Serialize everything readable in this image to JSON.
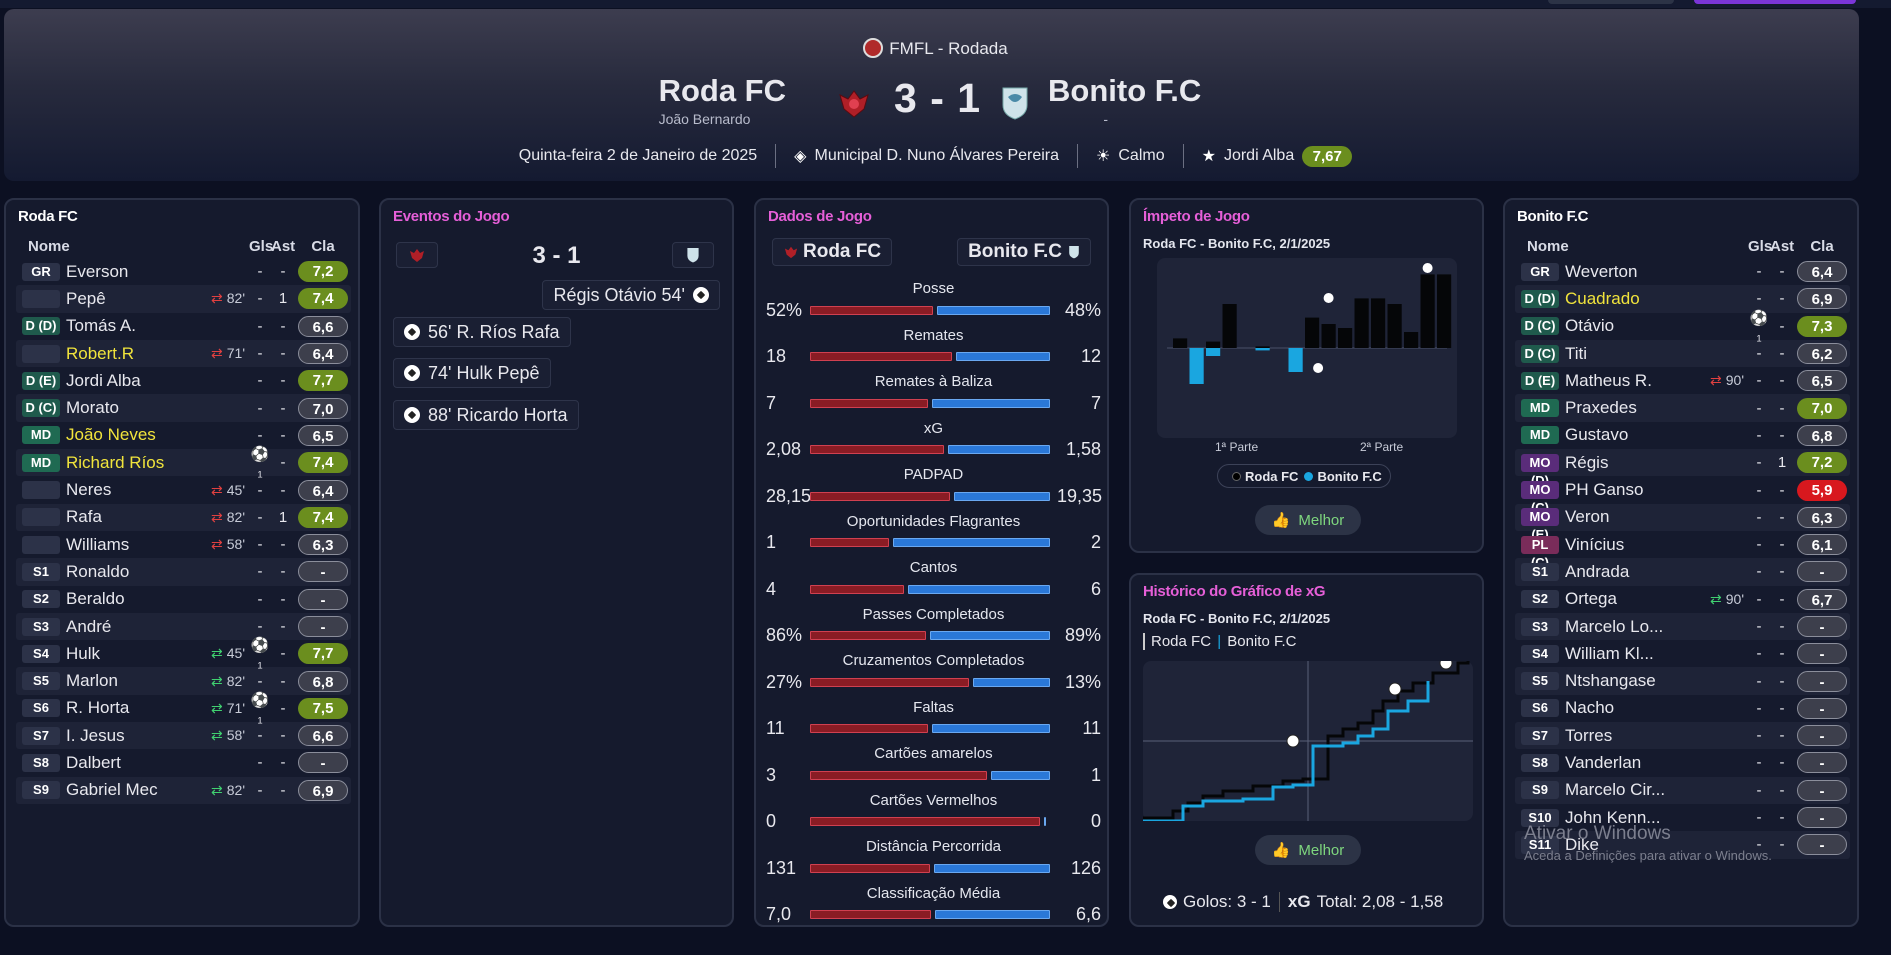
{
  "header": {
    "competition": "FMFL - Rodada",
    "home_team": "Roda FC",
    "home_manager": "João Bernardo",
    "away_team": "Bonito F.C",
    "away_manager": "-",
    "score": "3 - 1",
    "date": "Quinta-feira 2 de Janeiro de 2025",
    "stadium": "Municipal D. Nuno Álvares Pereira",
    "weather": "Calmo",
    "motm_name": "Jordi Alba",
    "motm_rating": "7,67"
  },
  "home_lineup": {
    "title": "Roda FC",
    "cols": {
      "name": "Nome",
      "gls": "Gls",
      "ast": "Ast",
      "cla": "Cla"
    },
    "players": [
      {
        "pos": "GR",
        "name": "Everson",
        "sub": "",
        "gls": "-",
        "ast": "-",
        "cla": "7,2",
        "c": "yel"
      },
      {
        "pos": "",
        "name": "Pepê",
        "sub": "82'",
        "dir": "out",
        "gls": "-",
        "ast": "1",
        "cla": "7,4",
        "c": "yel"
      },
      {
        "pos": "D (D)",
        "name": "Tomás A.",
        "sub": "",
        "gls": "-",
        "ast": "-",
        "cla": "6,6",
        "c": "avg"
      },
      {
        "pos": "",
        "name": "Robert.R",
        "sub": "71'",
        "dir": "out",
        "gls": "-",
        "ast": "-",
        "cla": "6,4",
        "c": "avg",
        "hl": true
      },
      {
        "pos": "D (E)",
        "name": "Jordi Alba",
        "sub": "",
        "gls": "-",
        "ast": "-",
        "cla": "7,7",
        "c": "yel"
      },
      {
        "pos": "D (C)",
        "name": "Morato",
        "sub": "",
        "gls": "-",
        "ast": "-",
        "cla": "7,0",
        "c": "avg"
      },
      {
        "pos": "MD",
        "name": "João Neves",
        "sub": "",
        "gls": "-",
        "ast": "-",
        "cla": "6,5",
        "c": "avg",
        "hl": true
      },
      {
        "pos": "MD",
        "name": "Richard Ríos",
        "sub": "",
        "gls": "⚽₁",
        "ast": "-",
        "cla": "7,4",
        "c": "yel",
        "hl": true
      },
      {
        "pos": "",
        "name": "Neres",
        "sub": "45'",
        "dir": "out",
        "gls": "-",
        "ast": "-",
        "cla": "6,4",
        "c": "avg"
      },
      {
        "pos": "",
        "name": "Rafa",
        "sub": "82'",
        "dir": "out",
        "gls": "-",
        "ast": "1",
        "cla": "7,4",
        "c": "yel"
      },
      {
        "pos": "",
        "name": "Williams",
        "sub": "58'",
        "dir": "out",
        "gls": "-",
        "ast": "-",
        "cla": "6,3",
        "c": "avg"
      },
      {
        "pos": "S1",
        "name": "Ronaldo",
        "sub": "",
        "gls": "-",
        "ast": "-",
        "cla": "-",
        "c": "dash"
      },
      {
        "pos": "S2",
        "name": "Beraldo",
        "sub": "",
        "gls": "-",
        "ast": "-",
        "cla": "-",
        "c": "dash"
      },
      {
        "pos": "S3",
        "name": "André",
        "sub": "",
        "gls": "-",
        "ast": "-",
        "cla": "-",
        "c": "dash"
      },
      {
        "pos": "S4",
        "name": "Hulk",
        "sub": "45'",
        "dir": "in",
        "gls": "⚽₁",
        "ast": "-",
        "cla": "7,7",
        "c": "yel"
      },
      {
        "pos": "S5",
        "name": "Marlon",
        "sub": "82'",
        "dir": "in",
        "gls": "-",
        "ast": "-",
        "cla": "6,8",
        "c": "avg"
      },
      {
        "pos": "S6",
        "name": "R. Horta",
        "sub": "71'",
        "dir": "in",
        "gls": "⚽₁",
        "ast": "-",
        "cla": "7,5",
        "c": "yel"
      },
      {
        "pos": "S7",
        "name": "I. Jesus",
        "sub": "58'",
        "dir": "in",
        "gls": "-",
        "ast": "-",
        "cla": "6,6",
        "c": "avg"
      },
      {
        "pos": "S8",
        "name": "Dalbert",
        "sub": "",
        "gls": "-",
        "ast": "-",
        "cla": "-",
        "c": "dash"
      },
      {
        "pos": "S9",
        "name": "Gabriel Mec",
        "sub": "82'",
        "dir": "in",
        "gls": "-",
        "ast": "-",
        "cla": "6,9",
        "c": "avg"
      }
    ]
  },
  "events": {
    "title": "Eventos do Jogo",
    "score": "3 - 1",
    "away_event": "Régis Otávio 54'",
    "home_events": [
      "56' R. Ríos Rafa",
      "74' Hulk Pepê",
      "88' Ricardo Horta"
    ]
  },
  "stats": {
    "title": "Dados de Jogo",
    "home": "Roda FC",
    "away": "Bonito F.C",
    "rows": [
      {
        "label": "Posse",
        "h": "52%",
        "a": "48%",
        "hv": 52,
        "av": 48
      },
      {
        "label": "Remates",
        "h": "18",
        "a": "12",
        "hv": 18,
        "av": 12
      },
      {
        "label": "Remates à Baliza",
        "h": "7",
        "a": "7",
        "hv": 7,
        "av": 7
      },
      {
        "label": "xG",
        "h": "2,08",
        "a": "1,58",
        "hv": 2.08,
        "av": 1.58
      },
      {
        "label": "PADPAD",
        "h": "28,15",
        "a": "19,35",
        "hv": 28.15,
        "av": 19.35
      },
      {
        "label": "Oportunidades Flagrantes",
        "h": "1",
        "a": "2",
        "hv": 1,
        "av": 2
      },
      {
        "label": "Cantos",
        "h": "4",
        "a": "6",
        "hv": 4,
        "av": 6
      },
      {
        "label": "Passes Completados",
        "h": "86%",
        "a": "89%",
        "hv": 86,
        "av": 89
      },
      {
        "label": "Cruzamentos Completados",
        "h": "27%",
        "a": "13%",
        "hv": 27,
        "av": 13
      },
      {
        "label": "Faltas",
        "h": "11",
        "a": "11",
        "hv": 11,
        "av": 11
      },
      {
        "label": "Cartões amarelos",
        "h": "3",
        "a": "1",
        "hv": 3,
        "av": 1
      },
      {
        "label": "Cartões Vermelhos",
        "h": "0",
        "a": "0",
        "hv": 0,
        "av": 0
      },
      {
        "label": "Distância Percorrida",
        "h": "131",
        "a": "126",
        "hv": 131,
        "av": 126
      },
      {
        "label": "Classificação Média",
        "h": "7,0",
        "a": "6,6",
        "hv": 7.0,
        "av": 6.6
      }
    ]
  },
  "momentum": {
    "title": "Ímpeto de Jogo",
    "subtitle": "Roda FC - Bonito F.C, 2/1/2025",
    "half1": "1ª Parte",
    "half2": "2ª Parte",
    "legend_home": "Roda FC",
    "legend_away": "Bonito F.C",
    "button": "Melhor",
    "home_bars": [
      0.12,
      0,
      0.08,
      0.55,
      0,
      0.02,
      0,
      0,
      0.38,
      0.3,
      0.25,
      0.62,
      0.62,
      0.55,
      0.2,
      0.92,
      0.92
    ],
    "away_bars": [
      0,
      0.45,
      0.1,
      0,
      0,
      0.03,
      0,
      0.3,
      0,
      0,
      0,
      0,
      0,
      0,
      0,
      0,
      0
    ]
  },
  "xg_chart": {
    "title": "Histórico do Gráfico de xG",
    "subtitle": "Roda FC - Bonito F.C, 2/1/2025",
    "legend_home": "Roda FC",
    "legend_away": "Bonito F.C",
    "button": "Melhor",
    "goals_label": "Golos: 3 - 1",
    "xg_label": "xG",
    "xg_total": "Total: 2,08 - 1,58"
  },
  "away_lineup": {
    "title": "Bonito F.C",
    "cols": {
      "name": "Nome",
      "gls": "Gls",
      "ast": "Ast",
      "cla": "Cla"
    },
    "players": [
      {
        "pos": "GR",
        "name": "Weverton",
        "sub": "",
        "gls": "-",
        "ast": "-",
        "cla": "6,4",
        "c": "avg"
      },
      {
        "pos": "D (D)",
        "name": "Cuadrado",
        "sub": "",
        "gls": "-",
        "ast": "-",
        "cla": "6,9",
        "c": "avg",
        "hl": true
      },
      {
        "pos": "D (C)",
        "name": "Otávio",
        "sub": "",
        "gls": "⚽₁",
        "ast": "-",
        "cla": "7,3",
        "c": "yel"
      },
      {
        "pos": "D (C)",
        "name": "Titi",
        "sub": "",
        "gls": "-",
        "ast": "-",
        "cla": "6,2",
        "c": "avg"
      },
      {
        "pos": "D (E)",
        "name": "Matheus R.",
        "sub": "90'",
        "dir": "out",
        "gls": "-",
        "ast": "-",
        "cla": "6,5",
        "c": "avg"
      },
      {
        "pos": "MD",
        "name": "Praxedes",
        "sub": "",
        "gls": "-",
        "ast": "-",
        "cla": "7,0",
        "c": "yel"
      },
      {
        "pos": "MD",
        "name": "Gustavo",
        "sub": "",
        "gls": "-",
        "ast": "-",
        "cla": "6,8",
        "c": "avg"
      },
      {
        "pos": "MO (D)",
        "name": "Régis",
        "sub": "",
        "gls": "-",
        "ast": "1",
        "cla": "7,2",
        "c": "yel"
      },
      {
        "pos": "MO (C)",
        "name": "PH Ganso",
        "sub": "",
        "gls": "-",
        "ast": "-",
        "cla": "5,9",
        "c": "red"
      },
      {
        "pos": "MO (E)",
        "name": "Veron",
        "sub": "",
        "gls": "-",
        "ast": "-",
        "cla": "6,3",
        "c": "avg"
      },
      {
        "pos": "PL (C)",
        "name": "Vinícius",
        "sub": "",
        "gls": "-",
        "ast": "-",
        "cla": "6,1",
        "c": "avg"
      },
      {
        "pos": "S1",
        "name": "Andrada",
        "sub": "",
        "gls": "-",
        "ast": "-",
        "cla": "-",
        "c": "dash"
      },
      {
        "pos": "S2",
        "name": "Ortega",
        "sub": "90'",
        "dir": "in",
        "gls": "-",
        "ast": "-",
        "cla": "6,7",
        "c": "avg"
      },
      {
        "pos": "S3",
        "name": "Marcelo Lo...",
        "sub": "",
        "gls": "-",
        "ast": "-",
        "cla": "-",
        "c": "dash"
      },
      {
        "pos": "S4",
        "name": "William Kl...",
        "sub": "",
        "gls": "-",
        "ast": "-",
        "cla": "-",
        "c": "dash"
      },
      {
        "pos": "S5",
        "name": "Ntshangase",
        "sub": "",
        "gls": "-",
        "ast": "-",
        "cla": "-",
        "c": "dash"
      },
      {
        "pos": "S6",
        "name": "Nacho",
        "sub": "",
        "gls": "-",
        "ast": "-",
        "cla": "-",
        "c": "dash"
      },
      {
        "pos": "S7",
        "name": "Torres",
        "sub": "",
        "gls": "-",
        "ast": "-",
        "cla": "-",
        "c": "dash"
      },
      {
        "pos": "S8",
        "name": "Vanderlan",
        "sub": "",
        "gls": "-",
        "ast": "-",
        "cla": "-",
        "c": "dash"
      },
      {
        "pos": "S9",
        "name": "Marcelo Cir...",
        "sub": "",
        "gls": "-",
        "ast": "-",
        "cla": "-",
        "c": "dash"
      },
      {
        "pos": "S10",
        "name": "John Kenn...",
        "sub": "",
        "gls": "-",
        "ast": "-",
        "cla": "-",
        "c": "dash"
      },
      {
        "pos": "S11",
        "name": "Dike",
        "sub": "",
        "gls": "-",
        "ast": "-",
        "cla": "-",
        "c": "dash"
      }
    ]
  },
  "watermark": {
    "line1": "Ativar o Windows",
    "line2": "Aceda a Definições para ativar o Windows."
  },
  "colors": {
    "home": "#8a1c24",
    "away": "#2a78d8",
    "rating_good": "#6b8e1e",
    "rating_bad": "#d8181e",
    "accent_title": "#e65fd8"
  }
}
